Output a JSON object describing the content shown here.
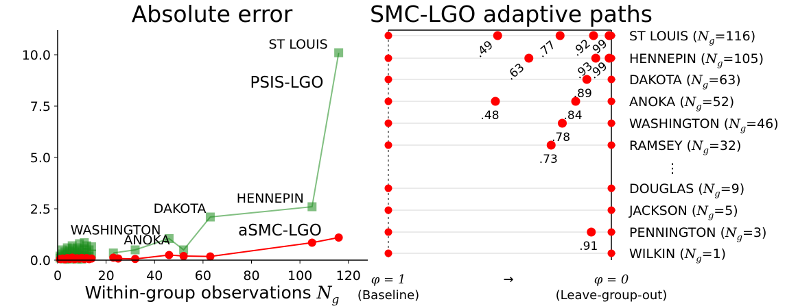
{
  "chart_data": [
    {
      "type": "scatter",
      "title": "Absolute error",
      "xlabel_text": "Within-group observations ",
      "xlabel_var": "N",
      "xlabel_sub": "g",
      "xlim": [
        0,
        128
      ],
      "ylim": [
        0,
        11.2
      ],
      "xticks": [
        0,
        20,
        40,
        60,
        80,
        100,
        120
      ],
      "yticks": [
        0.0,
        2.5,
        5.0,
        7.5,
        10.0
      ],
      "xtick_labels": [
        "0",
        "20",
        "40",
        "60",
        "80",
        "100",
        "120"
      ],
      "ytick_labels": [
        "0.0",
        "2.5",
        "5.0",
        "7.5",
        "10.0"
      ],
      "series": [
        {
          "name": "PSIS-LGO",
          "color": "#1a8a1a",
          "marker": "square",
          "line_points": [
            [
              23,
              0.35
            ],
            [
              32,
              0.5
            ],
            [
              46,
              1.05
            ],
            [
              52,
              0.5
            ],
            [
              63,
              2.1
            ],
            [
              105,
              2.6
            ],
            [
              116,
              10.1
            ]
          ],
          "cluster_points": [
            [
              1,
              0.2
            ],
            [
              1,
              0.1
            ],
            [
              2,
              0.15
            ],
            [
              2,
              0.3
            ],
            [
              2,
              0.5
            ],
            [
              3,
              0.1
            ],
            [
              3,
              0.25
            ],
            [
              3,
              0.4
            ],
            [
              4,
              0.15
            ],
            [
              4,
              0.3
            ],
            [
              4,
              0.6
            ],
            [
              5,
              0.1
            ],
            [
              5,
              0.2
            ],
            [
              5,
              0.45
            ],
            [
              6,
              0.15
            ],
            [
              6,
              0.3
            ],
            [
              6,
              0.55
            ],
            [
              6,
              0.7
            ],
            [
              7,
              0.1
            ],
            [
              7,
              0.25
            ],
            [
              7,
              0.4
            ],
            [
              8,
              0.2
            ],
            [
              8,
              0.35
            ],
            [
              8,
              0.6
            ],
            [
              9,
              0.15
            ],
            [
              9,
              0.3
            ],
            [
              9,
              0.5
            ],
            [
              9,
              0.8
            ],
            [
              10,
              0.2
            ],
            [
              10,
              0.4
            ],
            [
              11,
              0.25
            ],
            [
              11,
              0.55
            ],
            [
              11,
              0.85
            ],
            [
              12,
              0.15
            ],
            [
              12,
              0.4
            ],
            [
              12,
              0.7
            ],
            [
              13,
              0.2
            ],
            [
              13,
              0.5
            ],
            [
              14,
              0.3
            ],
            [
              14,
              0.65
            ],
            [
              3,
              0.05
            ],
            [
              5,
              0.05
            ],
            [
              8,
              0.05
            ],
            [
              10,
              0.05
            ]
          ]
        },
        {
          "name": "aSMC-LGO",
          "color": "#ff0000",
          "marker": "circle",
          "line_points": [
            [
              23,
              0.12
            ],
            [
              25,
              0.08
            ],
            [
              32,
              0.06
            ],
            [
              46,
              0.25
            ],
            [
              52,
              0.2
            ],
            [
              63,
              0.18
            ],
            [
              105,
              0.85
            ],
            [
              116,
              1.1
            ]
          ],
          "cluster_points": [
            [
              1,
              0.05
            ],
            [
              2,
              0.08
            ],
            [
              3,
              0.04
            ],
            [
              4,
              0.1
            ],
            [
              5,
              0.06
            ],
            [
              6,
              0.12
            ],
            [
              7,
              0.05
            ],
            [
              8,
              0.09
            ],
            [
              9,
              0.07
            ],
            [
              10,
              0.11
            ],
            [
              11,
              0.06
            ],
            [
              12,
              0.1
            ],
            [
              13,
              0.05
            ],
            [
              14,
              0.08
            ]
          ]
        }
      ],
      "series_labels": [
        {
          "text": "PSIS-LGO",
          "color": "#1a8a1a"
        },
        {
          "text": "aSMC-LGO",
          "color": "#ff0000"
        }
      ],
      "annotations": [
        {
          "text": "ST LOUIS",
          "x": 116,
          "y": 10.1
        },
        {
          "text": "HENNEPIN",
          "x": 105,
          "y": 2.6
        },
        {
          "text": "DAKOTA",
          "x": 63,
          "y": 2.1
        },
        {
          "text": "WASHINGTON",
          "x": 46,
          "y": 1.05
        },
        {
          "text": "ANOKA",
          "x": 52,
          "y": 0.5
        }
      ]
    },
    {
      "type": "scatter",
      "title": "SMC-LGO adaptive paths",
      "x_axis_labels": {
        "left_var": "φ = 1",
        "left_sub": "(Baseline)",
        "arrow": "→",
        "right_var": "φ = 0",
        "right_sub": "(Leave-group-out)"
      },
      "rows": [
        {
          "label": "ST LOUIS",
          "ng": "116",
          "points": [
            0.49,
            0.77,
            0.92,
            0.99
          ],
          "labels": [
            ".49",
            ".77",
            ".92",
            ".99"
          ]
        },
        {
          "label": "HENNEPIN",
          "ng": "105",
          "points": [
            0.63,
            0.93,
            0.99
          ],
          "labels": [
            ".63",
            ".93",
            ".99"
          ]
        },
        {
          "label": "DAKOTA",
          "ng": "63",
          "points": [
            0.89
          ],
          "labels": [
            ".89"
          ]
        },
        {
          "label": "ANOKA",
          "ng": "52",
          "points": [
            0.48,
            0.84
          ],
          "labels": [
            ".48",
            ".84"
          ]
        },
        {
          "label": "WASHINGTON",
          "ng": "46",
          "points": [
            0.78
          ],
          "labels": [
            ".78"
          ]
        },
        {
          "label": "RAMSEY",
          "ng": "32",
          "points": [
            0.73
          ],
          "labels": [
            ".73"
          ]
        },
        {
          "label": "DOUGLAS",
          "ng": "9",
          "points": [],
          "labels": []
        },
        {
          "label": "JACKSON",
          "ng": "5",
          "points": [],
          "labels": []
        },
        {
          "label": "PENNINGTON",
          "ng": "3",
          "points": [
            0.91
          ],
          "labels": [
            ".91"
          ]
        },
        {
          "label": "WILKIN",
          "ng": "1",
          "points": [],
          "labels": []
        }
      ],
      "ellipsis": "⋮",
      "ng_prefix": "N",
      "ng_sub": "g",
      "point_color": "#ff0000"
    }
  ]
}
